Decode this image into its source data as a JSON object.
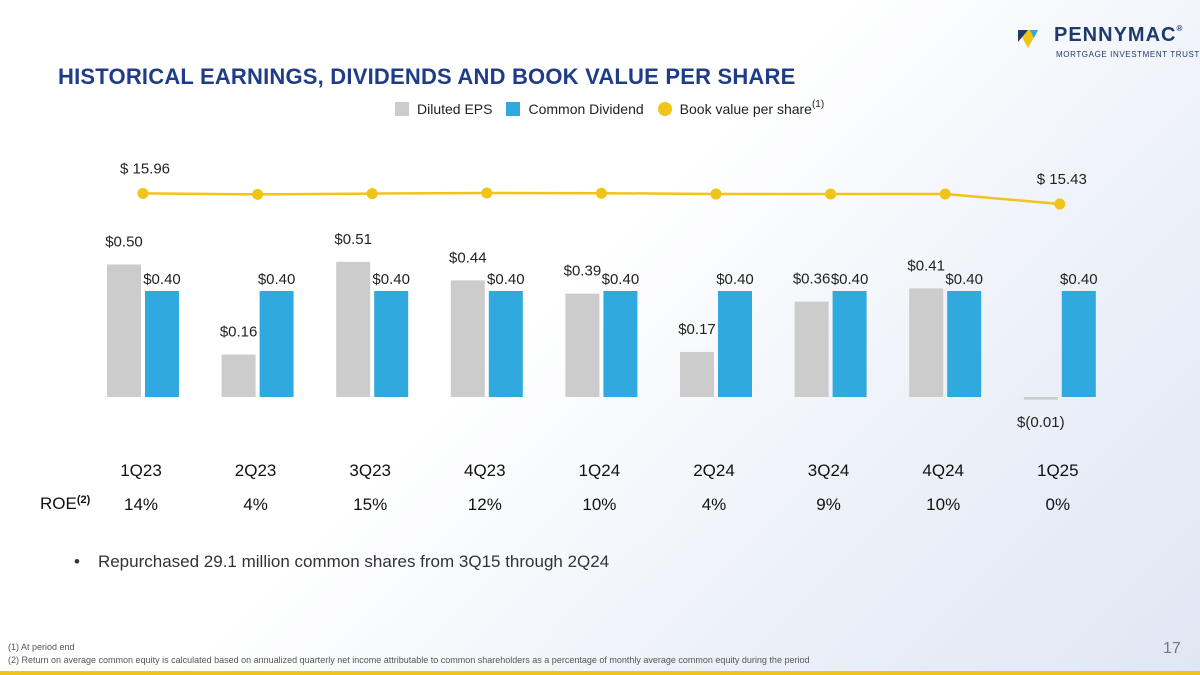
{
  "logo": {
    "name": "PENNYMAC",
    "tagline": "MORTGAGE INVESTMENT TRUST",
    "mark": "®"
  },
  "title": "HISTORICAL EARNINGS, DIVIDENDS AND BOOK VALUE PER SHARE",
  "legend": {
    "eps": "Diluted EPS",
    "dividend": "Common Dividend",
    "bvps": "Book value per share",
    "bvps_note": "(1)"
  },
  "colors": {
    "eps": "#cccccc",
    "dividend": "#2fa9de",
    "bvps": "#f0c419",
    "title": "#1f3c88"
  },
  "roe_label": "ROE",
  "roe_note": "(2)",
  "bullet": "Repurchased 29.1 million common shares from 3Q15 through 2Q24",
  "footnotes": {
    "f1": "(1) At period end",
    "f2": "(2) Return on average common equity is calculated based on annualized quarterly net income attributable to common shareholders as a percentage of monthly average common equity during the period"
  },
  "page_number": "17",
  "chart_data": {
    "type": "bar",
    "title": "HISTORICAL EARNINGS, DIVIDENDS AND BOOK VALUE PER SHARE",
    "categories": [
      "1Q23",
      "2Q23",
      "3Q23",
      "4Q23",
      "1Q24",
      "2Q24",
      "3Q24",
      "4Q24",
      "1Q25"
    ],
    "series": [
      {
        "name": "Diluted EPS",
        "values": [
          0.5,
          0.16,
          0.51,
          0.44,
          0.39,
          0.17,
          0.36,
          0.41,
          -0.01
        ],
        "labels": [
          "$0.50",
          "$0.16",
          "$0.51",
          "$0.44",
          "$0.39",
          "$0.17",
          "$0.36",
          "$0.41",
          "$(0.01)"
        ]
      },
      {
        "name": "Common Dividend",
        "values": [
          0.4,
          0.4,
          0.4,
          0.4,
          0.4,
          0.4,
          0.4,
          0.4,
          0.4
        ],
        "labels": [
          "$0.40",
          "$0.40",
          "$0.40",
          "$0.40",
          "$0.40",
          "$0.40",
          "$0.40",
          "$0.40",
          "$0.40"
        ]
      },
      {
        "name": "Book value per share",
        "type": "line",
        "values": [
          15.96,
          15.91,
          15.95,
          15.98,
          15.97,
          15.93,
          15.93,
          15.93,
          15.43
        ],
        "labels": [
          "$ 15.96",
          "",
          "",
          "",
          "",
          "",
          "",
          "",
          "$ 15.43"
        ]
      }
    ],
    "roe": [
      "14%",
      "4%",
      "15%",
      "12%",
      "10%",
      "4%",
      "9%",
      "10%",
      "0%"
    ]
  }
}
